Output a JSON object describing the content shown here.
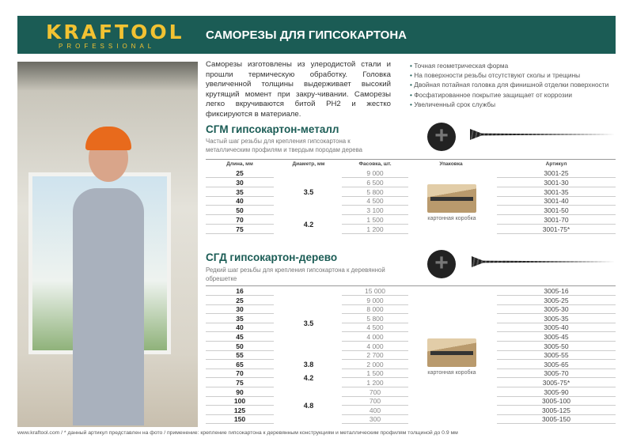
{
  "header": {
    "logo": "KRAFTOOL",
    "logo_sub": "PROFESSIONAL",
    "title": "САМОРЕЗЫ ДЛЯ ГИПСОКАРТОНА"
  },
  "intro": "Саморезы изготовлены из улеродистой стали и прошли термическую обработку. Головка увеличенной толщины выдерживает высокий крутящий момент при закру-чивании. Саморезы легко вкручиваются битой PH2 и жестко фиксируются в материале.",
  "bullets": [
    "Точная геометрическая форма",
    "На поверхности резьбы отсутствуют сколы и трещины",
    "Двойная потайная головка для финишной отделки поверхности",
    "Фосфатированное покрытие защищает от коррозии",
    "Увеличенный срок службы"
  ],
  "columns": [
    "Длина, мм",
    "Диаметр, мм",
    "Фасовка, шт.",
    "Упаковка",
    "Артикул"
  ],
  "sections": [
    {
      "title": "СГМ гипсокартон-металл",
      "subtitle": "Частый шаг резьбы для крепления гипсокартона к металлическим профилям и твердым породам дерева",
      "packaging": "картонная коробка",
      "rows": [
        [
          "25",
          "9 000",
          "3001-25"
        ],
        [
          "30",
          "6 500",
          "3001-30"
        ],
        [
          "35",
          "5 800",
          "3001-35"
        ],
        [
          "40",
          "4 500",
          "3001-40"
        ],
        [
          "50",
          "3 100",
          "3001-50"
        ],
        [
          "70",
          "1 500",
          "3001-70"
        ],
        [
          "75",
          "1 200",
          "3001-75*"
        ]
      ],
      "diameters": [
        {
          "value": "3.5",
          "from": 0,
          "to": 4
        },
        {
          "value": "4.2",
          "from": 5,
          "to": 6
        }
      ]
    },
    {
      "title": "СГД гипсокартон-дерево",
      "subtitle": "Редкий шаг резьбы для крепления гипсокартона к деревянной обрешетке",
      "packaging": "картонная коробка",
      "rows": [
        [
          "16",
          "15 000",
          "3005-16"
        ],
        [
          "25",
          "9 000",
          "3005-25"
        ],
        [
          "30",
          "8 000",
          "3005-30"
        ],
        [
          "35",
          "5 800",
          "3005-35"
        ],
        [
          "40",
          "4 500",
          "3005-40"
        ],
        [
          "45",
          "4 000",
          "3005-45"
        ],
        [
          "50",
          "4 000",
          "3005-50"
        ],
        [
          "55",
          "2 700",
          "3005-55"
        ],
        [
          "65",
          "2 000",
          "3005-65"
        ],
        [
          "70",
          "1 500",
          "3005-70"
        ],
        [
          "75",
          "1 200",
          "3005-75*"
        ],
        [
          "90",
          "700",
          "3005-90"
        ],
        [
          "100",
          "700",
          "3005-100"
        ],
        [
          "125",
          "400",
          "3005-125"
        ],
        [
          "150",
          "300",
          "3005-150"
        ]
      ],
      "diameters": [
        {
          "value": "3.5",
          "from": 0,
          "to": 7
        },
        {
          "value": "3.8",
          "from": 8,
          "to": 8
        },
        {
          "value": "4.2",
          "from": 9,
          "to": 10
        },
        {
          "value": "4.8",
          "from": 11,
          "to": 14
        }
      ]
    }
  ],
  "footer": "www.kraftool.com  /  * данный артикул представлен на фото  /  применение: крепление гипсокартона к деревянным конструкциям и металлическим профилям толщиной до 0.9 мм"
}
